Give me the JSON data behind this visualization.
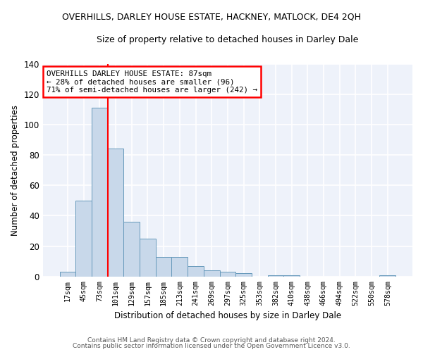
{
  "title": "OVERHILLS, DARLEY HOUSE ESTATE, HACKNEY, MATLOCK, DE4 2QH",
  "subtitle": "Size of property relative to detached houses in Darley Dale",
  "xlabel": "Distribution of detached houses by size in Darley Dale",
  "ylabel": "Number of detached properties",
  "bar_color": "#c8d8ea",
  "bar_edge_color": "#6699bb",
  "background_color": "#eef2fa",
  "grid_color": "#ffffff",
  "categories": [
    "17sqm",
    "45sqm",
    "73sqm",
    "101sqm",
    "129sqm",
    "157sqm",
    "185sqm",
    "213sqm",
    "241sqm",
    "269sqm",
    "297sqm",
    "325sqm",
    "353sqm",
    "382sqm",
    "410sqm",
    "438sqm",
    "466sqm",
    "494sqm",
    "522sqm",
    "550sqm",
    "578sqm"
  ],
  "values": [
    3,
    50,
    111,
    84,
    36,
    25,
    13,
    13,
    7,
    4,
    3,
    2,
    0,
    1,
    1,
    0,
    0,
    0,
    0,
    0,
    1
  ],
  "ylim": [
    0,
    140
  ],
  "yticks": [
    0,
    20,
    40,
    60,
    80,
    100,
    120,
    140
  ],
  "red_line_x": 2.5,
  "annotation_text": "OVERHILLS DARLEY HOUSE ESTATE: 87sqm\n← 28% of detached houses are smaller (96)\n71% of semi-detached houses are larger (242) →",
  "footer1": "Contains HM Land Registry data © Crown copyright and database right 2024.",
  "footer2": "Contains public sector information licensed under the Open Government Licence v3.0."
}
